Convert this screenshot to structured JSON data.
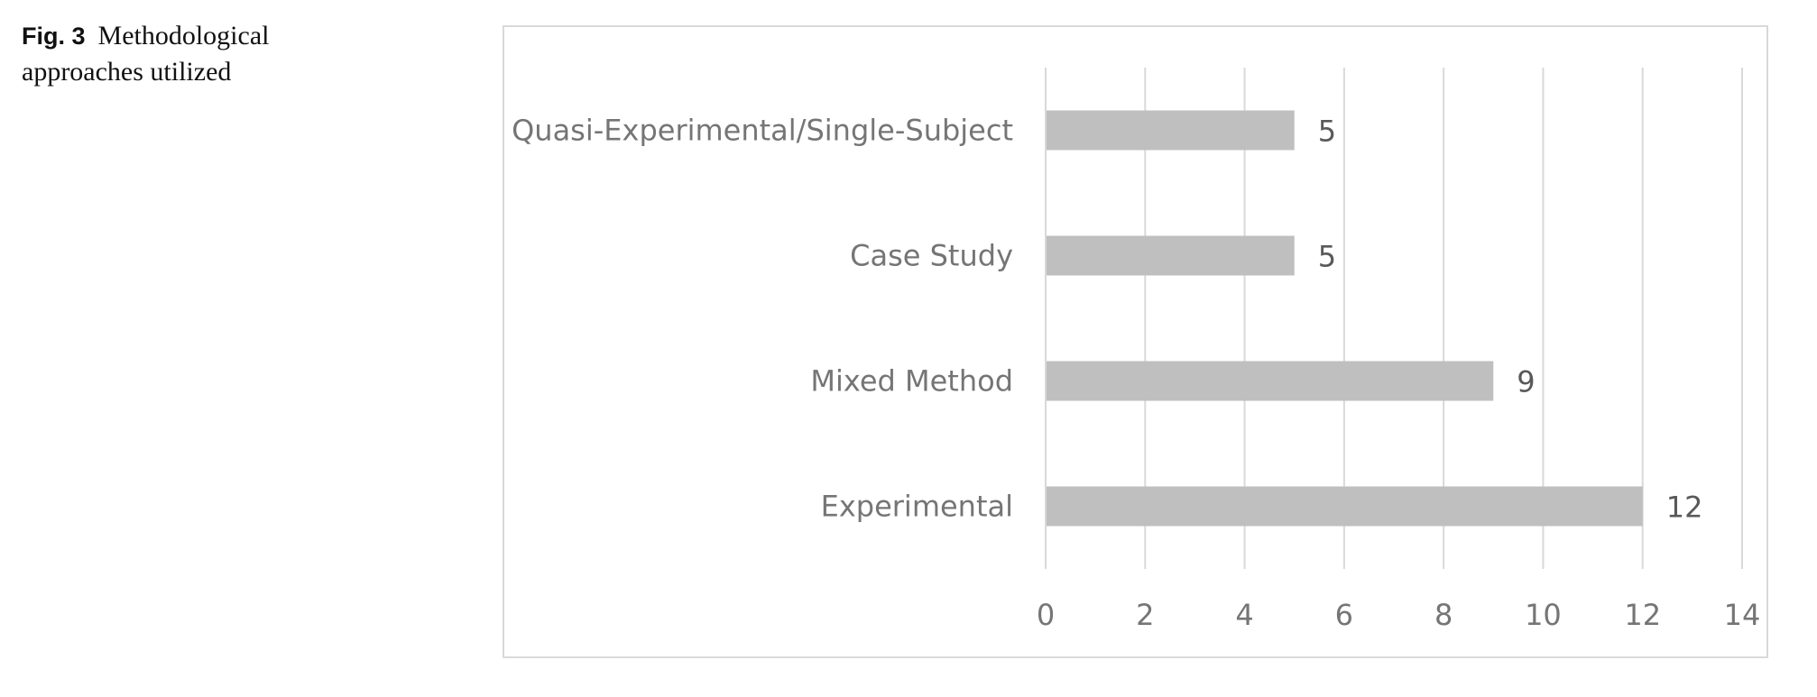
{
  "caption": {
    "fig_label": "Fig. 3",
    "text": "Methodological approaches utilized"
  },
  "chart_data": {
    "type": "bar",
    "orientation": "horizontal",
    "title": "",
    "xlabel": "",
    "ylabel": "",
    "categories": [
      "Quasi-Experimental/Single-Subject",
      "Case Study",
      "Mixed Method",
      "Experimental"
    ],
    "values": [
      5,
      5,
      9,
      12
    ],
    "xlim": [
      0,
      14
    ],
    "xticks": [
      0,
      2,
      4,
      6,
      8,
      10,
      12,
      14
    ],
    "grid": "vertical",
    "legend": "none",
    "bar_color": "#bfbfbf",
    "grid_color": "#d9d9d9"
  }
}
